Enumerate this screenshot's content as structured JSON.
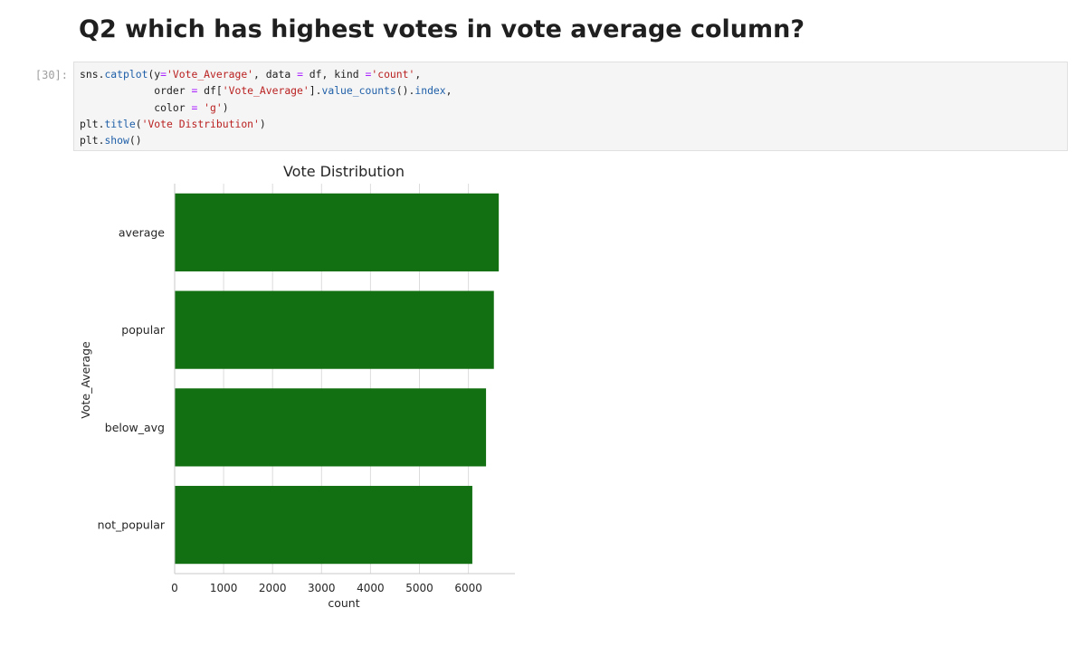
{
  "markdown": {
    "heading": "Q2 which has highest votes in vote average column?"
  },
  "code_cell": {
    "prompt": "[30]:",
    "lines": [
      [
        {
          "t": "sns",
          "c": ""
        },
        {
          "t": ".",
          "c": ""
        },
        {
          "t": "catplot",
          "c": "fn"
        },
        {
          "t": "(y",
          "c": ""
        },
        {
          "t": "=",
          "c": "op"
        },
        {
          "t": "'Vote_Average'",
          "c": "str"
        },
        {
          "t": ", data ",
          "c": ""
        },
        {
          "t": "=",
          "c": "op"
        },
        {
          "t": " df, kind ",
          "c": ""
        },
        {
          "t": "=",
          "c": "op"
        },
        {
          "t": "'count'",
          "c": "str"
        },
        {
          "t": ",",
          "c": ""
        }
      ],
      [
        {
          "t": "            order ",
          "c": ""
        },
        {
          "t": "=",
          "c": "op"
        },
        {
          "t": " df[",
          "c": ""
        },
        {
          "t": "'Vote_Average'",
          "c": "str"
        },
        {
          "t": "].",
          "c": ""
        },
        {
          "t": "value_counts",
          "c": "fn"
        },
        {
          "t": "().",
          "c": ""
        },
        {
          "t": "index",
          "c": "fn"
        },
        {
          "t": ",",
          "c": ""
        }
      ],
      [
        {
          "t": "            color ",
          "c": ""
        },
        {
          "t": "=",
          "c": "op"
        },
        {
          "t": " ",
          "c": ""
        },
        {
          "t": "'g'",
          "c": "str"
        },
        {
          "t": ")",
          "c": ""
        }
      ],
      [
        {
          "t": "plt",
          "c": ""
        },
        {
          "t": ".",
          "c": ""
        },
        {
          "t": "title",
          "c": "fn"
        },
        {
          "t": "(",
          "c": ""
        },
        {
          "t": "'Vote Distribution'",
          "c": "str"
        },
        {
          "t": ")",
          "c": ""
        }
      ],
      [
        {
          "t": "plt",
          "c": ""
        },
        {
          "t": ".",
          "c": ""
        },
        {
          "t": "show",
          "c": "fn"
        },
        {
          "t": "()",
          "c": ""
        }
      ]
    ]
  },
  "chart_data": {
    "type": "bar",
    "orientation": "horizontal",
    "title": "Vote Distribution",
    "xlabel": "count",
    "ylabel": "Vote_Average",
    "categories": [
      "average",
      "popular",
      "below_avg",
      "not_popular"
    ],
    "values": [
      6620,
      6520,
      6360,
      6080
    ],
    "xticks": [
      0,
      1000,
      2000,
      3000,
      4000,
      5000,
      6000
    ],
    "xlim": [
      0,
      6950
    ],
    "grid": "vertical",
    "bar_color": "#127012",
    "gridline_color": "#dcdcdc",
    "axis_color": "#c8c8c8"
  }
}
